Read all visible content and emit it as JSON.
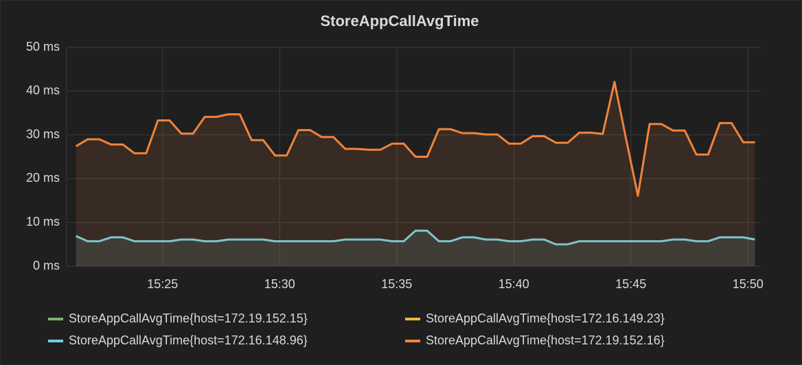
{
  "chart_data": {
    "type": "line",
    "title": "StoreAppCallAvgTime",
    "x": [
      21.3,
      21.8,
      22.3,
      22.8,
      23.3,
      23.8,
      24.3,
      24.8,
      25.3,
      25.8,
      26.3,
      26.8,
      27.3,
      27.8,
      28.3,
      28.8,
      29.3,
      29.8,
      30.3,
      30.8,
      31.3,
      31.8,
      32.3,
      32.8,
      33.3,
      33.8,
      34.3,
      34.8,
      35.3,
      35.8,
      36.3,
      36.8,
      37.3,
      37.8,
      38.3,
      38.8,
      39.3,
      39.8,
      40.3,
      40.8,
      41.3,
      41.8,
      42.3,
      42.8,
      43.3,
      43.8,
      44.3,
      44.8,
      45.3,
      45.8,
      46.3,
      46.8,
      47.3,
      47.8,
      48.3,
      48.8,
      49.3,
      49.8,
      50.3
    ],
    "series": [
      {
        "name": "StoreAppCallAvgTime{host=172.19.152.15}",
        "color": "#7eb26d"
      },
      {
        "name": "StoreAppCallAvgTime{host=172.16.149.23}",
        "color": "#eab839"
      },
      {
        "name": "StoreAppCallAvgTime{host=172.16.148.96}",
        "color": "#6ed0e0",
        "values": [
          6.9,
          5.7,
          5.7,
          6.6,
          6.6,
          5.7,
          5.7,
          5.7,
          5.7,
          6.1,
          6.1,
          5.7,
          5.7,
          6.1,
          6.1,
          6.1,
          6.1,
          5.7,
          5.7,
          5.7,
          5.7,
          5.7,
          5.7,
          6.1,
          6.1,
          6.1,
          6.1,
          5.7,
          5.7,
          8.1,
          8.1,
          5.7,
          5.7,
          6.6,
          6.6,
          6.1,
          6.1,
          5.7,
          5.7,
          6.1,
          6.1,
          5.0,
          5.0,
          5.7,
          5.7,
          5.7,
          5.7,
          5.7,
          5.7,
          5.7,
          5.7,
          6.1,
          6.1,
          5.7,
          5.7,
          6.6,
          6.6,
          6.6,
          6.1
        ]
      },
      {
        "name": "StoreAppCallAvgTime{host=172.19.152.16}",
        "color": "#ef843c",
        "values": [
          27.4,
          29,
          29,
          27.8,
          27.8,
          25.8,
          25.8,
          33.3,
          33.3,
          30.3,
          30.3,
          34.1,
          34.1,
          34.7,
          34.7,
          28.8,
          28.8,
          25.3,
          25.3,
          31.1,
          31.1,
          29.5,
          29.5,
          26.8,
          26.8,
          26.6,
          26.6,
          28,
          28,
          25,
          25,
          31.3,
          31.3,
          30.4,
          30.4,
          30.1,
          30.1,
          28,
          28,
          29.7,
          29.7,
          28.2,
          28.2,
          30.5,
          30.5,
          30.2,
          42.1,
          29,
          16.1,
          32.5,
          32.5,
          31,
          31,
          25.5,
          25.5,
          32.7,
          32.7,
          28.3,
          28.3
        ]
      }
    ],
    "xlim": [
      20.9,
      50.55
    ],
    "xticks": [
      {
        "value": 25,
        "label": "15:25"
      },
      {
        "value": 30,
        "label": "15:30"
      },
      {
        "value": 35,
        "label": "15:35"
      },
      {
        "value": 40,
        "label": "15:40"
      },
      {
        "value": 45,
        "label": "15:45"
      },
      {
        "value": 50,
        "label": "15:50"
      }
    ],
    "ylim": [
      0,
      50
    ],
    "yticks": [
      {
        "value": 0,
        "label": "0 ms"
      },
      {
        "value": 10,
        "label": "10 ms"
      },
      {
        "value": 20,
        "label": "20 ms"
      },
      {
        "value": 30,
        "label": "30 ms"
      },
      {
        "value": 40,
        "label": "40 ms"
      },
      {
        "value": 50,
        "label": "50 ms"
      }
    ],
    "grid": true,
    "fill": true
  }
}
